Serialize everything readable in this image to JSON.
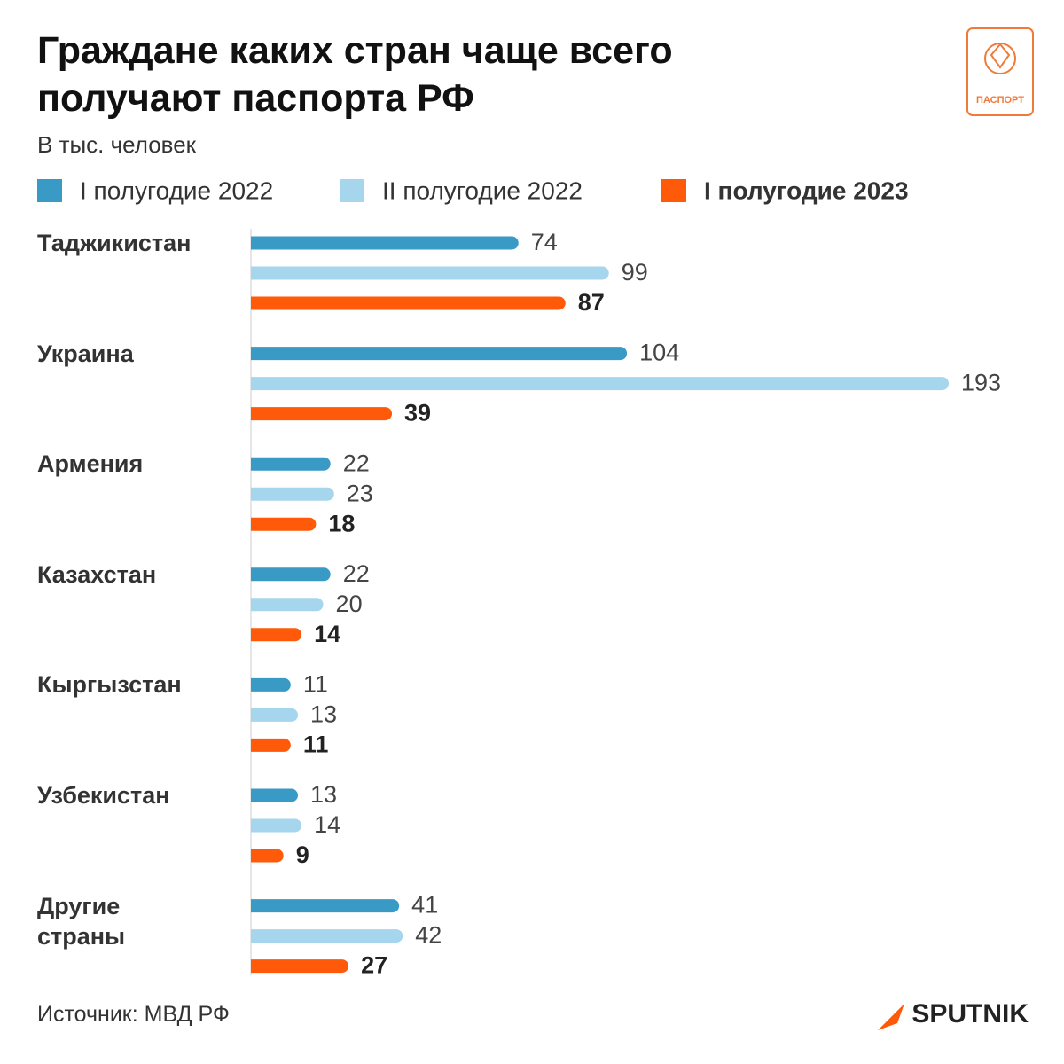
{
  "chart_data": {
    "type": "bar",
    "orientation": "horizontal",
    "title": "Граждане каких стран чаще всего получают паспорта РФ",
    "subtitle": "В тыс. человек",
    "categories": [
      "Таджикистан",
      "Украина",
      "Армения",
      "Казахстан",
      "Кыргызстан",
      "Узбекистан",
      "Другие страны"
    ],
    "series": [
      {
        "name": "I полугодие 2022",
        "color": "#3a9ac6",
        "values": [
          74,
          104,
          22,
          22,
          11,
          13,
          41
        ]
      },
      {
        "name": "II полугодие 2022",
        "color": "#a6d5ee",
        "values": [
          99,
          193,
          23,
          20,
          13,
          14,
          42
        ]
      },
      {
        "name": "I полугодие 2023",
        "color": "#ff5a0a",
        "values": [
          87,
          39,
          18,
          14,
          11,
          9,
          27
        ]
      }
    ],
    "source": "Источник: МВД РФ",
    "logo_text": "ПАСПОРТ",
    "brand": "SPUTNIK"
  }
}
